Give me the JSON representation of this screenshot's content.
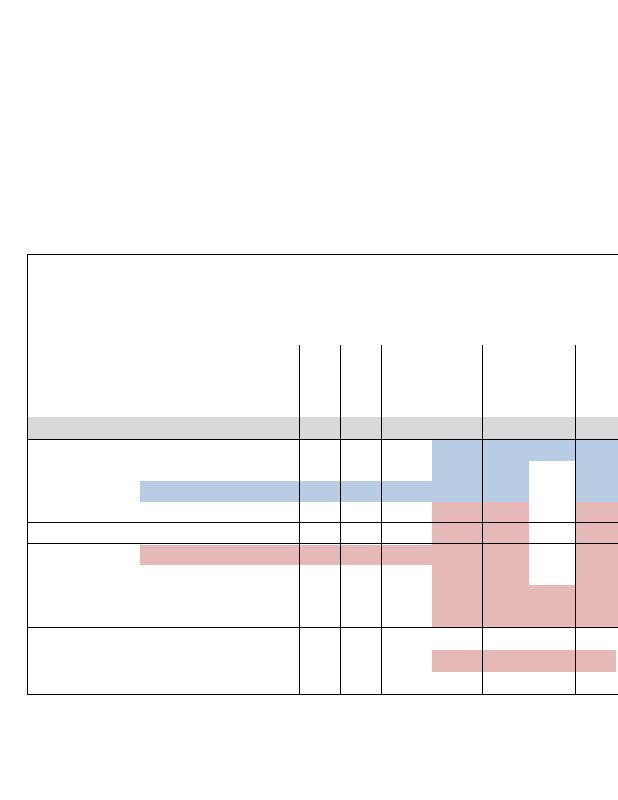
{
  "document": {
    "colors": {
      "header_band": "#d9d9d9",
      "blue_highlight": "#b8cce4",
      "red_highlight": "#e6b8b7",
      "rule": "#000000"
    }
  }
}
